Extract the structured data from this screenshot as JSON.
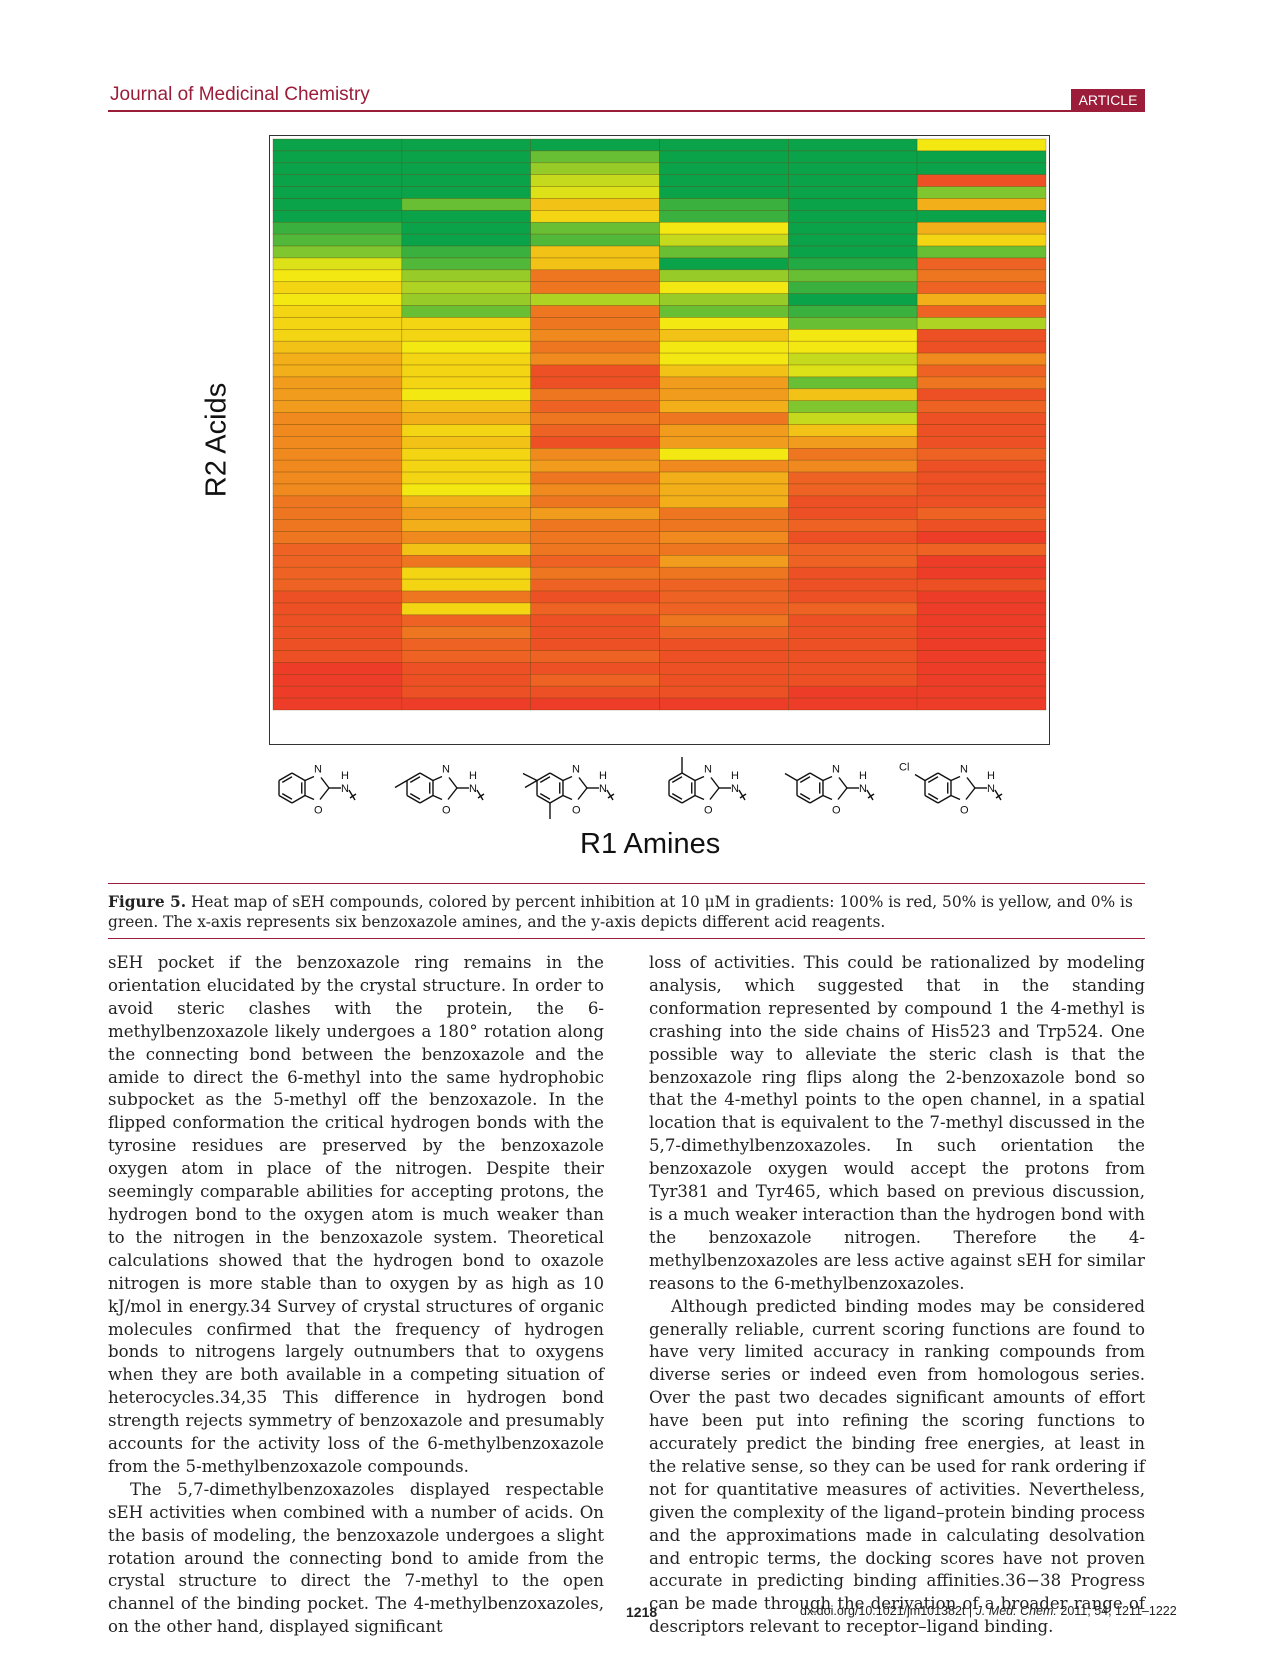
{
  "header": {
    "journal": "Journal of Medicinal Chemistry",
    "badge": "ARTICLE"
  },
  "figure": {
    "y_axis_label": "R2 Acids",
    "x_axis_label": "R1 Amines",
    "caption_label": "Figure 5.",
    "caption_text": "Heat map of sEH compounds, colored by percent inhibition at 10 μM in gradients: 100% is red, 50% is yellow, and 0% is green. The x-axis represents six benzoxazole amines, and the y-axis depicts different acid reagents.",
    "structure_atoms": {
      "N": "N",
      "O": "O",
      "H": "H",
      "Cl": "Cl"
    }
  },
  "chart_data": {
    "type": "heatmap",
    "columns": 6,
    "rows": 48,
    "color_scale": [
      [
        0,
        "#0ba34a"
      ],
      [
        50,
        "#f4e812"
      ],
      [
        100,
        "#ec2a2a"
      ]
    ],
    "values": [
      [
        0,
        0,
        0,
        0,
        0,
        50
      ],
      [
        0,
        0,
        20,
        0,
        0,
        0
      ],
      [
        0,
        0,
        30,
        0,
        0,
        0
      ],
      [
        0,
        0,
        40,
        0,
        0,
        90
      ],
      [
        0,
        0,
        45,
        0,
        0,
        25
      ],
      [
        0,
        20,
        60,
        10,
        0,
        65
      ],
      [
        0,
        0,
        55,
        10,
        0,
        0
      ],
      [
        10,
        0,
        20,
        50,
        0,
        65
      ],
      [
        15,
        0,
        15,
        40,
        0,
        55
      ],
      [
        25,
        10,
        60,
        20,
        0,
        20
      ],
      [
        45,
        15,
        60,
        0,
        5,
        85
      ],
      [
        50,
        30,
        80,
        30,
        20,
        80
      ],
      [
        55,
        35,
        80,
        50,
        10,
        85
      ],
      [
        50,
        30,
        35,
        30,
        0,
        65
      ],
      [
        55,
        20,
        80,
        20,
        10,
        85
      ],
      [
        55,
        55,
        80,
        50,
        20,
        35
      ],
      [
        55,
        55,
        75,
        60,
        50,
        90
      ],
      [
        60,
        50,
        80,
        50,
        50,
        90
      ],
      [
        65,
        55,
        75,
        50,
        40,
        75
      ],
      [
        65,
        55,
        90,
        60,
        45,
        85
      ],
      [
        70,
        55,
        90,
        70,
        20,
        80
      ],
      [
        70,
        50,
        80,
        70,
        60,
        90
      ],
      [
        70,
        60,
        85,
        65,
        25,
        85
      ],
      [
        75,
        65,
        80,
        80,
        40,
        90
      ],
      [
        75,
        55,
        85,
        70,
        60,
        90
      ],
      [
        75,
        60,
        90,
        70,
        70,
        90
      ],
      [
        75,
        55,
        75,
        50,
        80,
        85
      ],
      [
        75,
        55,
        70,
        75,
        75,
        90
      ],
      [
        75,
        55,
        80,
        65,
        85,
        90
      ],
      [
        75,
        50,
        75,
        65,
        85,
        90
      ],
      [
        80,
        65,
        80,
        65,
        90,
        90
      ],
      [
        80,
        70,
        70,
        80,
        90,
        85
      ],
      [
        80,
        65,
        80,
        80,
        85,
        90
      ],
      [
        80,
        75,
        80,
        75,
        90,
        95
      ],
      [
        85,
        60,
        80,
        80,
        85,
        85
      ],
      [
        85,
        80,
        85,
        70,
        85,
        95
      ],
      [
        85,
        55,
        80,
        80,
        90,
        95
      ],
      [
        85,
        55,
        85,
        85,
        90,
        90
      ],
      [
        90,
        80,
        90,
        85,
        90,
        95
      ],
      [
        90,
        55,
        85,
        85,
        85,
        95
      ],
      [
        90,
        85,
        90,
        80,
        90,
        95
      ],
      [
        90,
        80,
        90,
        85,
        90,
        95
      ],
      [
        90,
        85,
        90,
        90,
        90,
        95
      ],
      [
        90,
        85,
        85,
        90,
        90,
        95
      ],
      [
        95,
        90,
        90,
        90,
        90,
        95
      ],
      [
        95,
        90,
        85,
        90,
        90,
        95
      ],
      [
        95,
        90,
        90,
        90,
        95,
        95
      ],
      [
        95,
        95,
        95,
        95,
        95,
        95
      ]
    ]
  },
  "body": {
    "left": [
      "sEH pocket if the benzoxazole ring remains in the orientation elucidated by the crystal structure. In order to avoid steric clashes with the protein, the 6-methylbenzoxazole likely undergoes a 180° rotation along the connecting bond between the benzoxazole and the amide to direct the 6-methyl into the same hydrophobic subpocket as the 5-methyl off the benzoxazole. In the flipped conformation the critical hydrogen bonds with the tyrosine residues are preserved by the benzoxazole oxygen atom in place of the nitrogen. Despite their seemingly comparable abilities for accepting protons, the hydrogen bond to the oxygen atom is much weaker than to the nitrogen in the benzoxazole system. Theoretical calculations showed that the hydrogen bond to oxazole nitrogen is more stable than to oxygen by as high as 10 kJ/mol in energy.34 Survey of crystal structures of organic molecules confirmed that the frequency of hydrogen bonds to nitrogens largely outnumbers that to oxygens when they are both available in a competing situation of heterocycles.34,35 This difference in hydrogen bond strength rejects symmetry of benzoxazole and presumably accounts for the activity loss of the 6-methylbenzoxazole from the 5-methylbenzoxazole compounds.",
      "The 5,7-dimethylbenzoxazoles displayed respectable sEH activities when combined with a number of acids. On the basis of modeling, the benzoxazole undergoes a slight rotation around the connecting bond to amide from the crystal structure to direct the 7-methyl to the open channel of the binding pocket. The 4-methylbenzoxazoles, on the other hand, displayed significant"
    ],
    "right": [
      "loss of activities. This could be rationalized by modeling analysis, which suggested that in the standing conformation represented by compound 1 the 4-methyl is crashing into the side chains of His523 and Trp524. One possible way to alleviate the steric clash is that the benzoxazole ring flips along the 2-benzoxazole bond so that the 4-methyl points to the open channel, in a spatial location that is equivalent to the 7-methyl discussed in the 5,7-dimethylbenzoxazoles. In such orientation the benzoxazole oxygen would accept the protons from Tyr381 and Tyr465, which based on previous discussion, is a much weaker interaction than the hydrogen bond with the benzoxazole nitrogen. Therefore the 4-methylbenzoxazoles are less active against sEH for similar reasons to the 6-methylbenzoxazoles.",
      "Although predicted binding modes may be considered generally reliable, current scoring functions are found to have very limited accuracy in ranking compounds from diverse series or indeed even from homologous series. Over the past two decades significant amounts of effort have been put into refining the scoring functions to accurately predict the binding free energies, at least in the relative sense, so they can be used for rank ordering if not for quantitative measures of activities. Nevertheless, given the complexity of the ligand–protein binding process and the approximations made in calculating desolvation and entropic terms, the docking scores have not proven accurate in predicting binding affinities.36−38 Progress can be made through the derivation of a broader range of descriptors relevant to receptor–ligand binding."
    ]
  },
  "footer": {
    "page_number": "1218",
    "doi_prefix": "dx.doi.org/10.1021/jm101382t |",
    "journal_abbrev": "J. Med. Chem.",
    "citation": "2011, 54, 1211–1222"
  }
}
